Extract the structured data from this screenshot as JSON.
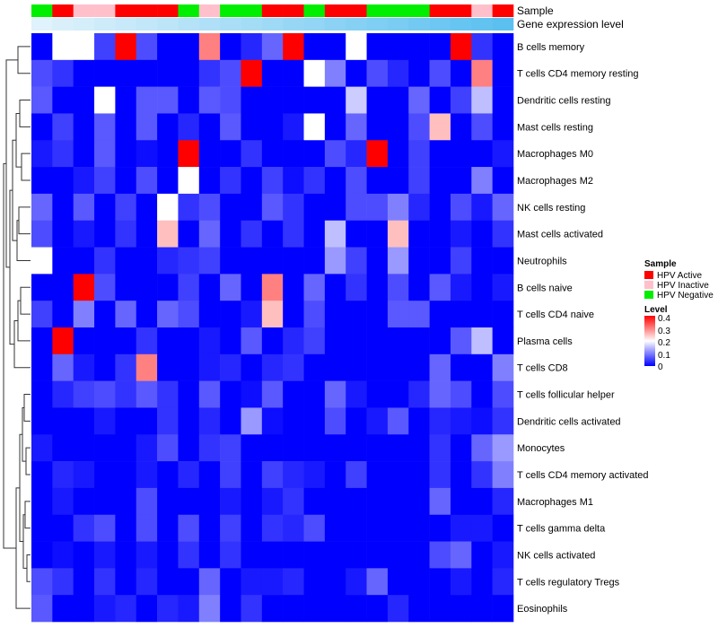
{
  "chart_data": {
    "type": "heatmap",
    "annotation_labels": [
      "Sample",
      "Gene expression level"
    ],
    "sample_groups": [
      "Negative",
      "Active",
      "Inactive",
      "Inactive",
      "Active",
      "Active",
      "Active",
      "Negative",
      "Inactive",
      "Negative",
      "Negative",
      "Active",
      "Active",
      "Negative",
      "Active",
      "Active",
      "Negative",
      "Negative",
      "Negative",
      "Active",
      "Active",
      "Inactive",
      "Active"
    ],
    "gene_expression_level": [
      0.0,
      0.05,
      0.09,
      0.14,
      0.18,
      0.23,
      0.27,
      0.32,
      0.36,
      0.41,
      0.45,
      0.5,
      0.55,
      0.59,
      0.64,
      0.68,
      0.73,
      0.77,
      0.82,
      0.86,
      0.91,
      0.95,
      1.0
    ],
    "rows": [
      "B cells memory",
      "T cells CD4 memory resting",
      "Dendritic cells resting",
      "Mast cells resting",
      "Macrophages M0",
      "Macrophages M2",
      "NK cells resting",
      "Mast cells activated",
      "Neutrophils",
      "B cells naive",
      "T cells CD4 naive",
      "Plasma cells",
      "T cells CD8",
      "T cells follicular helper",
      "Dendritic cells activated",
      "Monocytes",
      "T cells CD4 memory activated",
      "Macrophages M1",
      "T cells gamma delta",
      "NK cells activated",
      "T cells regulatory  Tregs",
      "Eosinophils"
    ],
    "values": [
      [
        0,
        0.2,
        0.2,
        0.05,
        0.4,
        0.06,
        0,
        0,
        0.3,
        0,
        0.03,
        0.08,
        0.4,
        0,
        0,
        0.2,
        0,
        0,
        0,
        0,
        0.4,
        0.04,
        0
      ],
      [
        0.06,
        0.04,
        0,
        0,
        0,
        0,
        0,
        0,
        0.04,
        0.06,
        0.4,
        0,
        0,
        0.2,
        0.1,
        0,
        0.06,
        0.03,
        0,
        0.06,
        0,
        0.3,
        0
      ],
      [
        0.07,
        0,
        0,
        0.2,
        0,
        0.07,
        0.07,
        0,
        0.07,
        0.06,
        0,
        0,
        0,
        0,
        0,
        0.16,
        0,
        0,
        0.08,
        0,
        0.05,
        0.15,
        0
      ],
      [
        0,
        0.05,
        0,
        0.07,
        0,
        0.07,
        0,
        0.03,
        0,
        0.07,
        0,
        0,
        0.02,
        0.2,
        0,
        0.08,
        0,
        0,
        0.06,
        0.25,
        0,
        0.06,
        0
      ],
      [
        0.02,
        0.04,
        0,
        0.07,
        0,
        0.01,
        0,
        0.4,
        0,
        0,
        0.04,
        0,
        0,
        0,
        0.06,
        0.03,
        0.4,
        0,
        0.05,
        0,
        0,
        0,
        0.02
      ],
      [
        0,
        0,
        0.02,
        0.05,
        0,
        0.06,
        0,
        0.2,
        0,
        0.04,
        0,
        0.05,
        0.01,
        0.04,
        0,
        0.06,
        0,
        0,
        0.05,
        0,
        0,
        0.1,
        0
      ],
      [
        0.08,
        0,
        0.07,
        0,
        0.05,
        0,
        0.2,
        0.04,
        0.06,
        0,
        0,
        0.07,
        0.04,
        0,
        0,
        0.06,
        0.06,
        0.1,
        0.03,
        0,
        0.06,
        0.02,
        0.08
      ],
      [
        0.06,
        0,
        0.02,
        0,
        0.04,
        0,
        0.25,
        0,
        0.08,
        0,
        0.04,
        0,
        0.04,
        0,
        0.15,
        0,
        0,
        0.25,
        0,
        0,
        0.02,
        0,
        0.04
      ],
      [
        0.2,
        0,
        0,
        0.04,
        0,
        0,
        0.03,
        0.04,
        0.05,
        0,
        0,
        0,
        0,
        0,
        0.12,
        0.05,
        0,
        0.12,
        0,
        0,
        0.05,
        0,
        0
      ],
      [
        0,
        0,
        0.4,
        0.06,
        0,
        0,
        0,
        0.05,
        0,
        0.08,
        0,
        0.3,
        0,
        0.08,
        0,
        0.04,
        0,
        0.06,
        0,
        0.07,
        0.02,
        0,
        0.02
      ],
      [
        0.05,
        0,
        0.1,
        0,
        0.08,
        0,
        0.08,
        0.06,
        0,
        0,
        0.02,
        0.25,
        0,
        0.06,
        0,
        0,
        0,
        0.07,
        0.07,
        0,
        0,
        0,
        0
      ],
      [
        0,
        0.4,
        0,
        0,
        0,
        0.04,
        0,
        0,
        0.02,
        0,
        0.07,
        0,
        0.03,
        0.05,
        0,
        0,
        0,
        0,
        0,
        0,
        0.07,
        0.15,
        0
      ],
      [
        0,
        0.08,
        0.02,
        0,
        0.04,
        0.3,
        0,
        0,
        0.02,
        0.03,
        0,
        0.03,
        0.04,
        0,
        0,
        0,
        0,
        0,
        0,
        0.08,
        0,
        0,
        0.1
      ],
      [
        0,
        0.03,
        0.05,
        0.06,
        0.04,
        0.07,
        0.04,
        0,
        0.07,
        0,
        0.01,
        0.07,
        0,
        0,
        0.08,
        0.02,
        0,
        0,
        0.03,
        0.08,
        0.06,
        0,
        0.06
      ],
      [
        0,
        0,
        0,
        0.02,
        0,
        0,
        0.04,
        0,
        0.03,
        0,
        0.12,
        0.01,
        0,
        0,
        0.06,
        0,
        0.02,
        0.07,
        0,
        0.03,
        0.02,
        0.01,
        0.04
      ],
      [
        0.02,
        0,
        0,
        0,
        0,
        0.02,
        0.06,
        0,
        0.04,
        0.05,
        0,
        0,
        0,
        0,
        0,
        0,
        0,
        0,
        0,
        0.04,
        0,
        0.08,
        0.12
      ],
      [
        0,
        0.03,
        0.02,
        0,
        0,
        0.02,
        0,
        0.03,
        0,
        0.05,
        0,
        0.05,
        0.03,
        0.02,
        0,
        0.05,
        0,
        0,
        0,
        0.04,
        0,
        0.04,
        0.1
      ],
      [
        0,
        0.02,
        0,
        0,
        0,
        0.06,
        0,
        0,
        0,
        0.02,
        0,
        0.02,
        0.04,
        0,
        0,
        0,
        0,
        0,
        0,
        0.08,
        0,
        0,
        0.03
      ],
      [
        0,
        0,
        0.04,
        0.06,
        0,
        0.06,
        0,
        0.06,
        0,
        0.05,
        0,
        0.04,
        0.03,
        0.06,
        0,
        0,
        0,
        0,
        0,
        0,
        0.02,
        0.02,
        0
      ],
      [
        0,
        0.01,
        0,
        0.02,
        0,
        0.02,
        0,
        0.04,
        0,
        0.04,
        0,
        0,
        0,
        0,
        0,
        0,
        0,
        0,
        0,
        0.06,
        0.08,
        0,
        0.02
      ],
      [
        0.06,
        0.04,
        0,
        0.04,
        0,
        0.03,
        0,
        0,
        0.08,
        0,
        0.02,
        0.02,
        0.03,
        0,
        0,
        0.02,
        0.08,
        0,
        0,
        0,
        0.02,
        0,
        0.03
      ],
      [
        0.07,
        0,
        0,
        0.02,
        0.03,
        0,
        0.03,
        0.02,
        0.1,
        0,
        0.04,
        0,
        0,
        0,
        0,
        0,
        0,
        0.03,
        0,
        0,
        0,
        0,
        0
      ]
    ],
    "legend": {
      "sample_title": "Sample",
      "sample_entries": [
        {
          "label": "HPV Active",
          "color": "#ff0000"
        },
        {
          "label": "HPV Inactive",
          "color": "#ffc0cb"
        },
        {
          "label": "HPV Negative",
          "color": "#00ee00"
        }
      ],
      "level_title": "Level",
      "level_ticks": [
        "0.4",
        "0.3",
        "0.2",
        "0.1",
        "0"
      ],
      "level_range": [
        0,
        0.4
      ],
      "colors": {
        "low": "#0000ff",
        "mid": "#ffffff",
        "high": "#ff0000"
      },
      "expression_colors": {
        "low": "#e0f2fb",
        "high": "#5bc0f0"
      }
    }
  }
}
